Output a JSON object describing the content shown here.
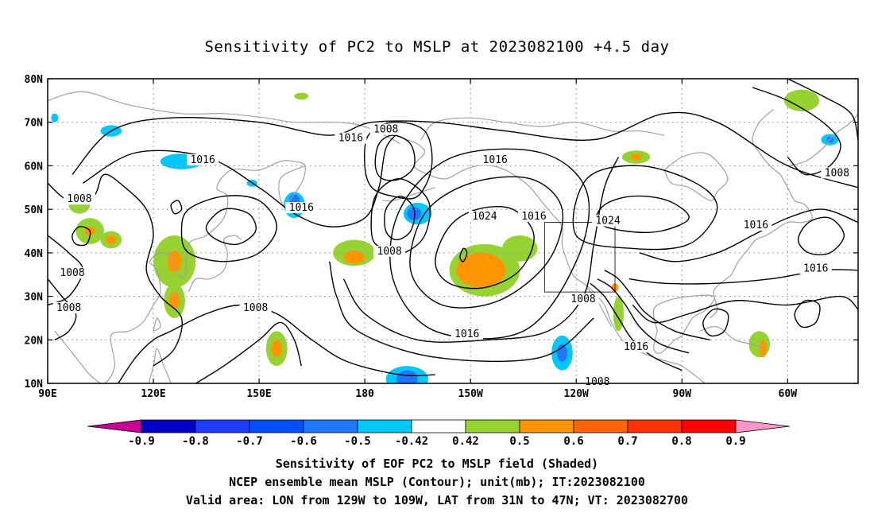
{
  "title": "Sensitivity of PC2 to MSLP at 2023082100 +4.5 day",
  "map": {
    "lat_labels": [
      "80N",
      "70N",
      "60N",
      "50N",
      "40N",
      "30N",
      "20N",
      "10N"
    ],
    "lon_labels": [
      "90E",
      "120E",
      "150E",
      "180",
      "150W",
      "120W",
      "90W",
      "60W"
    ],
    "lon_range": [
      90,
      320
    ],
    "lat_range": [
      10,
      80
    ],
    "valid_box": {
      "lon_min": 231,
      "lon_max": 251,
      "lat_min": 31,
      "lat_max": 47
    },
    "contour_labels": [
      {
        "text": "1016",
        "lon": 176,
        "lat": 66
      },
      {
        "text": "1016",
        "lon": 134,
        "lat": 61
      },
      {
        "text": "1008",
        "lon": 99,
        "lat": 52
      },
      {
        "text": "1016",
        "lon": 162,
        "lat": 50
      },
      {
        "text": "1008",
        "lon": 186,
        "lat": 68
      },
      {
        "text": "1016",
        "lon": 217,
        "lat": 61
      },
      {
        "text": "1024",
        "lon": 214,
        "lat": 48
      },
      {
        "text": "1016",
        "lon": 228,
        "lat": 48
      },
      {
        "text": "1024",
        "lon": 249,
        "lat": 47
      },
      {
        "text": "1016",
        "lon": 291,
        "lat": 46
      },
      {
        "text": "1008",
        "lon": 314,
        "lat": 58
      },
      {
        "text": "1016",
        "lon": 308,
        "lat": 36
      },
      {
        "text": "1008",
        "lon": 97,
        "lat": 35
      },
      {
        "text": "1008",
        "lon": 96,
        "lat": 27
      },
      {
        "text": "1008",
        "lon": 149,
        "lat": 27
      },
      {
        "text": "1008",
        "lon": 187,
        "lat": 40
      },
      {
        "text": "1016",
        "lon": 209,
        "lat": 21
      },
      {
        "text": "1008",
        "lon": 242,
        "lat": 29
      },
      {
        "text": "1016",
        "lon": 257,
        "lat": 18
      },
      {
        "text": "1008",
        "lon": 246,
        "lat": 10
      }
    ],
    "contour_color": "#000000",
    "coast_color": "#a0a0a0",
    "grid_color": "#a0a0a0"
  },
  "colorbar": {
    "labels": [
      "-0.9",
      "-0.8",
      "-0.7",
      "-0.6",
      "-0.5",
      "-0.42",
      "0.42",
      "0.5",
      "0.6",
      "0.7",
      "0.8",
      "0.9"
    ],
    "colors": [
      "#c80096",
      "#0000c8",
      "#1e3cff",
      "#0050ff",
      "#1e78ff",
      "#00c8ff",
      "#ffffff",
      "#96d232",
      "#ff9600",
      "#ff6400",
      "#ff3200",
      "#ff0000",
      "#ff96c8"
    ]
  },
  "shading": [
    {
      "color": "#96d232",
      "lon": 177,
      "lat": 40,
      "rlon": 6,
      "rlat": 3
    },
    {
      "color": "#ff9600",
      "lon": 177,
      "lat": 39,
      "rlon": 3,
      "rlat": 1.5
    },
    {
      "color": "#96d232",
      "lon": 214,
      "lat": 36,
      "rlon": 10,
      "rlat": 6
    },
    {
      "color": "#ff9600",
      "lon": 213,
      "lat": 36,
      "rlon": 7,
      "rlat": 4
    },
    {
      "color": "#96d232",
      "lon": 224,
      "lat": 41,
      "rlon": 5,
      "rlat": 3
    },
    {
      "color": "#96d232",
      "lon": 126,
      "lat": 38,
      "rlon": 6,
      "rlat": 6
    },
    {
      "color": "#ff9600",
      "lon": 126,
      "lat": 38,
      "rlon": 2,
      "rlat": 2.5
    },
    {
      "color": "#96d232",
      "lon": 126,
      "lat": 29,
      "rlon": 3,
      "rlat": 4
    },
    {
      "color": "#ff9600",
      "lon": 126,
      "lat": 29,
      "rlon": 1.5,
      "rlat": 2
    },
    {
      "color": "#96d232",
      "lon": 108,
      "lat": 43,
      "rlon": 3,
      "rlat": 2
    },
    {
      "color": "#ff9600",
      "lon": 108,
      "lat": 43,
      "rlon": 1.5,
      "rlat": 1
    },
    {
      "color": "#96d232",
      "lon": 102,
      "lat": 45,
      "rlon": 4,
      "rlat": 3
    },
    {
      "color": "#ff9600",
      "lon": 102,
      "lat": 45,
      "rlon": 1.5,
      "rlat": 1
    },
    {
      "color": "#96d232",
      "lon": 99,
      "lat": 51,
      "rlon": 3,
      "rlat": 2
    },
    {
      "color": "#96d232",
      "lon": 155,
      "lat": 18,
      "rlon": 3,
      "rlat": 4
    },
    {
      "color": "#ff9600",
      "lon": 155,
      "lat": 18,
      "rlon": 1.5,
      "rlat": 2
    },
    {
      "color": "#96d232",
      "lon": 252,
      "lat": 26,
      "rlon": 1.5,
      "rlat": 4
    },
    {
      "color": "#ff9600",
      "lon": 251,
      "lat": 32,
      "rlon": 1,
      "rlat": 1
    },
    {
      "color": "#96d232",
      "lon": 292,
      "lat": 19,
      "rlon": 3,
      "rlat": 3
    },
    {
      "color": "#ff9600",
      "lon": 293,
      "lat": 18,
      "rlon": 1,
      "rlat": 2
    },
    {
      "color": "#96d232",
      "lon": 257,
      "lat": 62,
      "rlon": 4,
      "rlat": 1.5
    },
    {
      "color": "#ff9600",
      "lon": 257,
      "lat": 62,
      "rlon": 1.5,
      "rlat": 0.8
    },
    {
      "color": "#96d232",
      "lon": 304,
      "lat": 75,
      "rlon": 5,
      "rlat": 2.5
    },
    {
      "color": "#96d232",
      "lon": 162,
      "lat": 76,
      "rlon": 2,
      "rlat": 0.8
    },
    {
      "color": "#00c8ff",
      "lon": 128,
      "lat": 61,
      "rlon": 6,
      "rlat": 1.8
    },
    {
      "color": "#00c8ff",
      "lon": 160,
      "lat": 51,
      "rlon": 3,
      "rlat": 3
    },
    {
      "color": "#1e78ff",
      "lon": 160,
      "lat": 52,
      "rlon": 1.5,
      "rlat": 1.5
    },
    {
      "color": "#00c8ff",
      "lon": 195,
      "lat": 49,
      "rlon": 4,
      "rlat": 2.5
    },
    {
      "color": "#1e78ff",
      "lon": 194,
      "lat": 49,
      "rlon": 2,
      "rlat": 1.5
    },
    {
      "color": "#00c8ff",
      "lon": 192,
      "lat": 11,
      "rlon": 6,
      "rlat": 3
    },
    {
      "color": "#1e78ff",
      "lon": 192,
      "lat": 11,
      "rlon": 3,
      "rlat": 2
    },
    {
      "color": "#00c8ff",
      "lon": 236,
      "lat": 17,
      "rlon": 3,
      "rlat": 4
    },
    {
      "color": "#1e78ff",
      "lon": 236,
      "lat": 17,
      "rlon": 1.5,
      "rlat": 2
    },
    {
      "color": "#00c8ff",
      "lon": 108,
      "lat": 68,
      "rlon": 3,
      "rlat": 1.3
    },
    {
      "color": "#00c8ff",
      "lon": 312,
      "lat": 66,
      "rlon": 2.5,
      "rlat": 1.3
    },
    {
      "color": "#1e78ff",
      "lon": 312,
      "lat": 66,
      "rlon": 1,
      "rlat": 0.7
    },
    {
      "color": "#00c8ff",
      "lon": 92,
      "lat": 71,
      "rlon": 1,
      "rlat": 1
    },
    {
      "color": "#00c8ff",
      "lon": 148,
      "lat": 56,
      "rlon": 1.5,
      "rlat": 0.8
    }
  ],
  "captions": {
    "line1": "Sensitivity of EOF PC2 to MSLP field (Shaded)",
    "line2": "NCEP ensemble mean MSLP (Contour); unit(mb); IT:2023082100",
    "line3": "Valid area: LON from 129W to 109W, LAT from 31N to 47N; VT: 2023082700"
  }
}
